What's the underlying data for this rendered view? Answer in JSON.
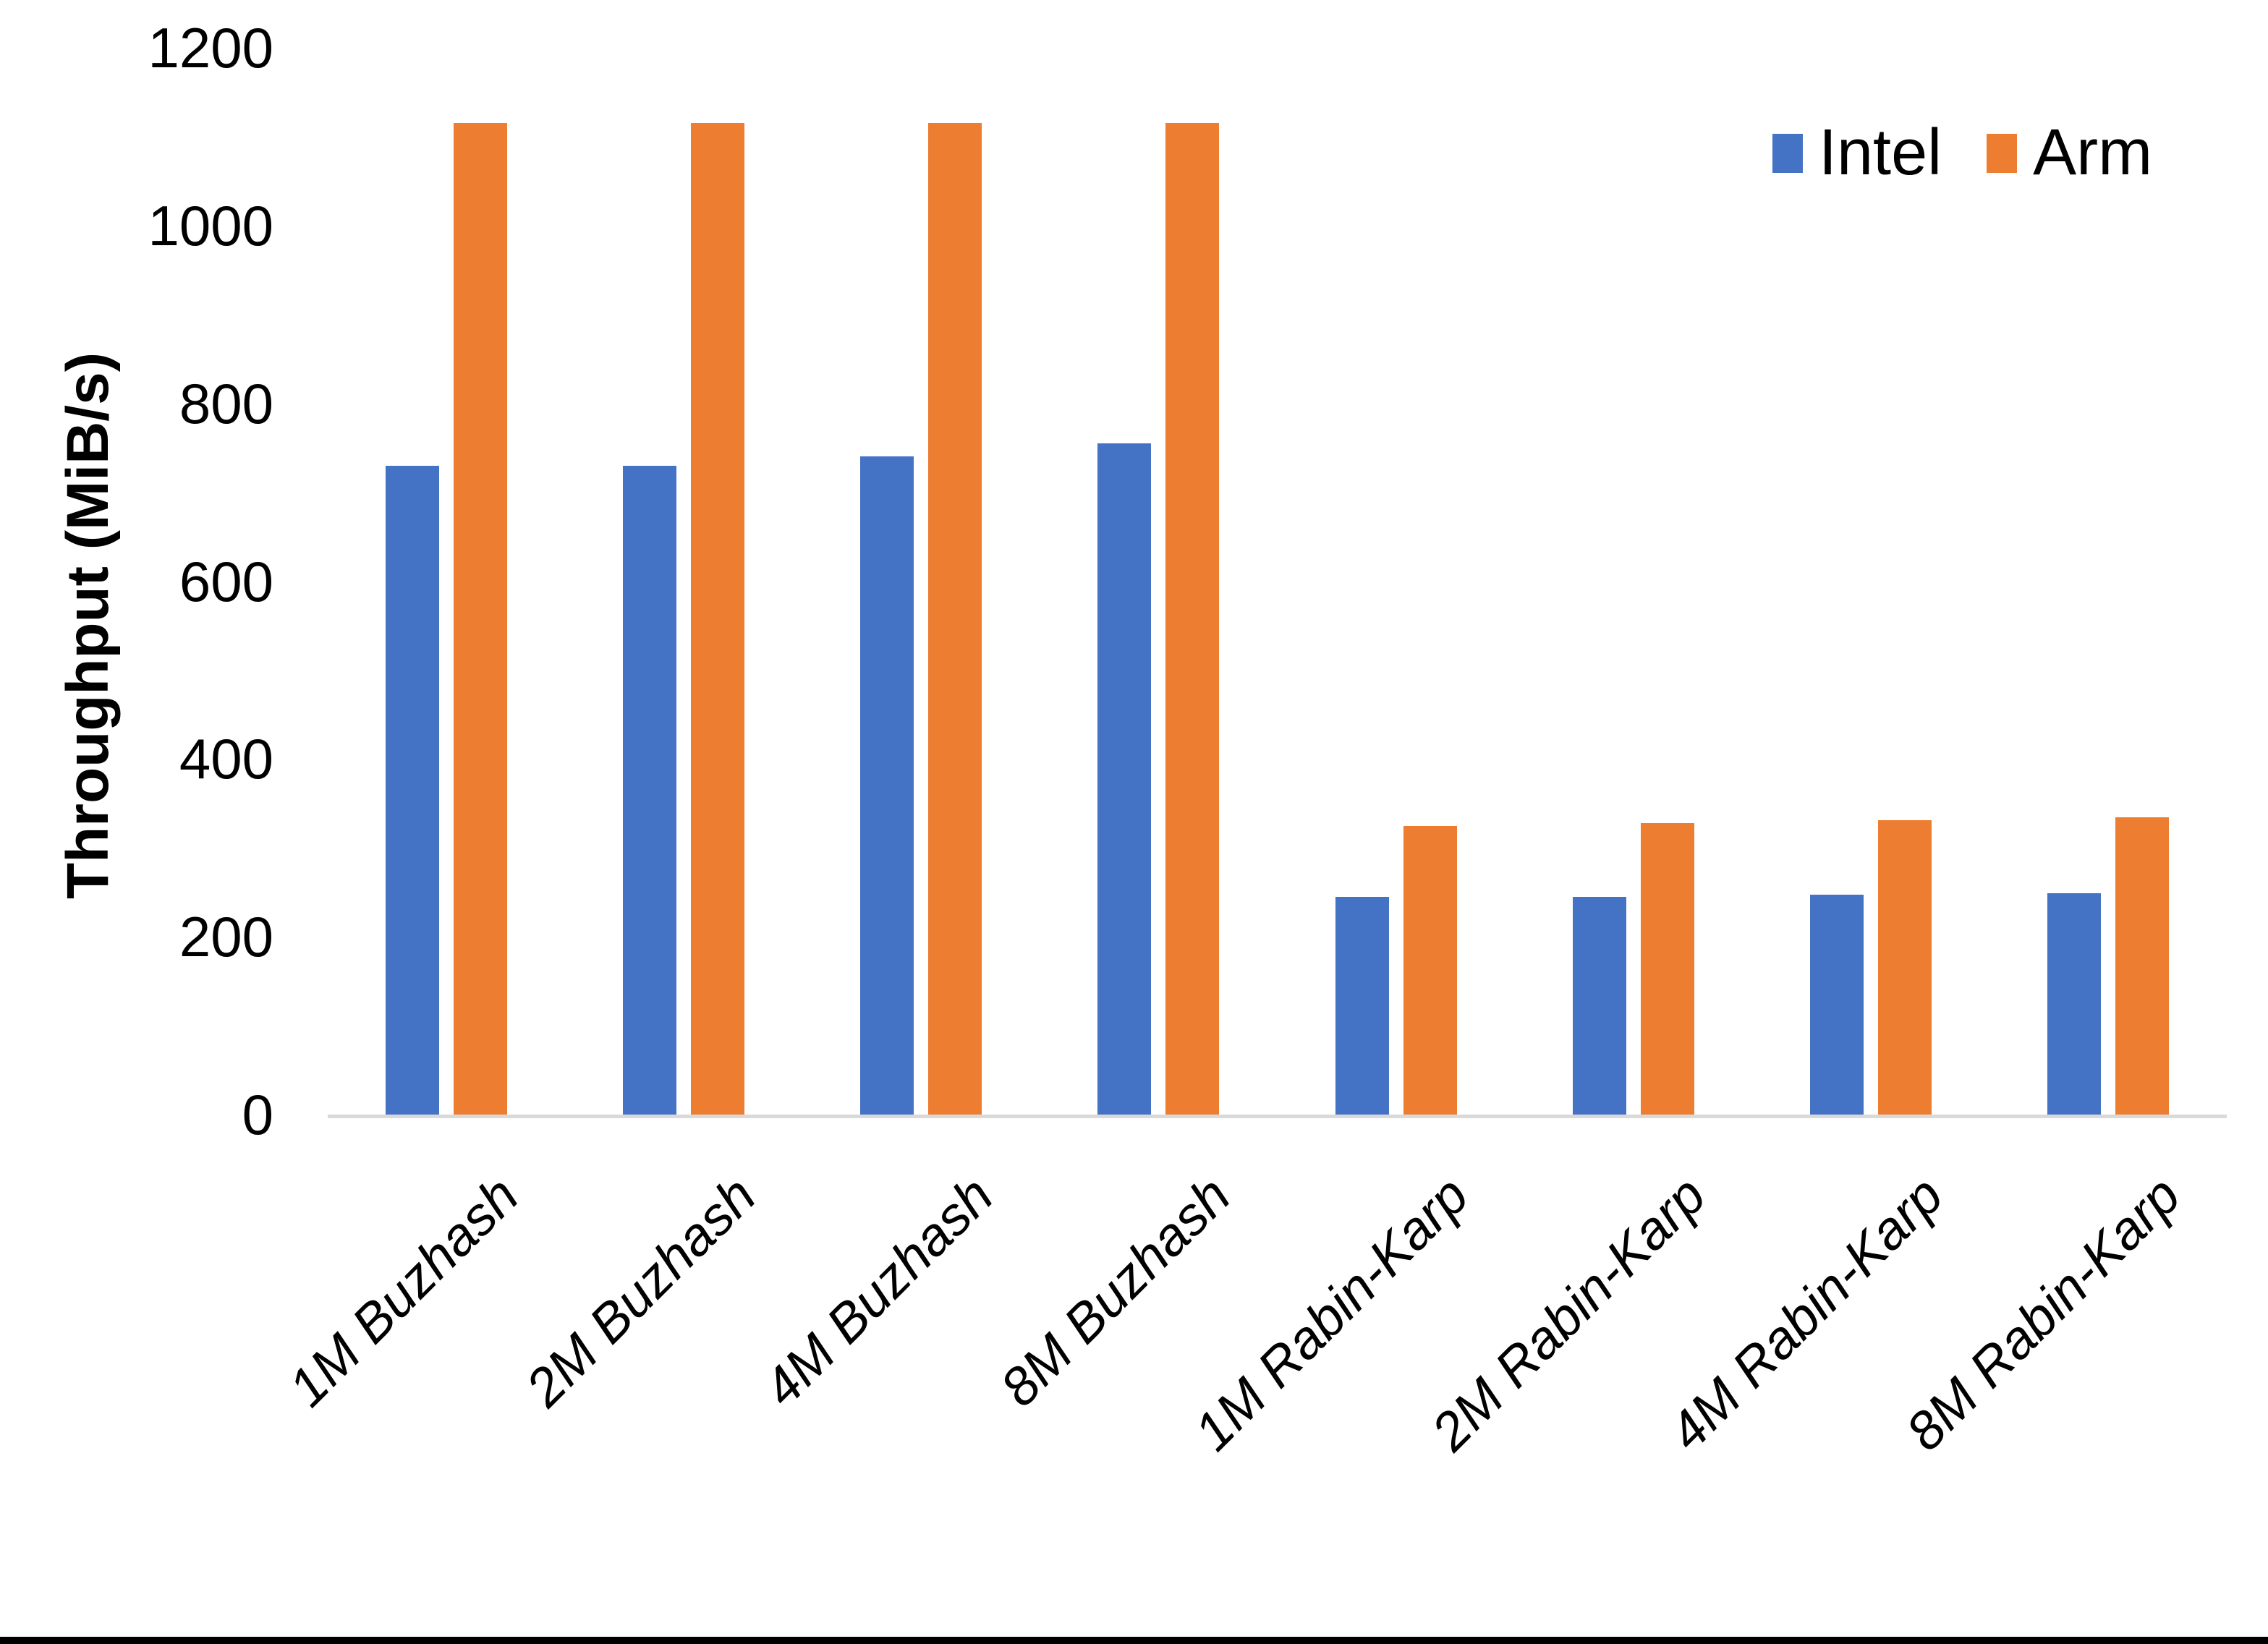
{
  "chart_data": {
    "type": "bar",
    "title": "",
    "xlabel": "",
    "ylabel": "Throughput (MiB/s)",
    "categories": [
      "1M Buzhash",
      "2M Buzhash",
      "4M Buzhash",
      "8M Buzhash",
      "1M Rabin-Karp",
      "2M Rabin-Karp",
      "4M Rabin-Karp",
      "8M Rabin-Karp"
    ],
    "series": [
      {
        "name": "Intel",
        "color": "#4472C4",
        "values": [
          730,
          730,
          740,
          755,
          245,
          245,
          247,
          249
        ]
      },
      {
        "name": "Arm",
        "color": "#ED7D31",
        "values": [
          1115,
          1115,
          1115,
          1115,
          325,
          328,
          331,
          334
        ]
      }
    ],
    "ylim": [
      0,
      1200
    ],
    "yticks": [
      0,
      200,
      400,
      600,
      800,
      1000,
      1200
    ],
    "grid": false,
    "legend_position": "top-right",
    "colors": {
      "axis_line": "#D9D9D9",
      "text": "#000000",
      "background": "#FFFFFF",
      "bottom_border": "#000000"
    }
  }
}
